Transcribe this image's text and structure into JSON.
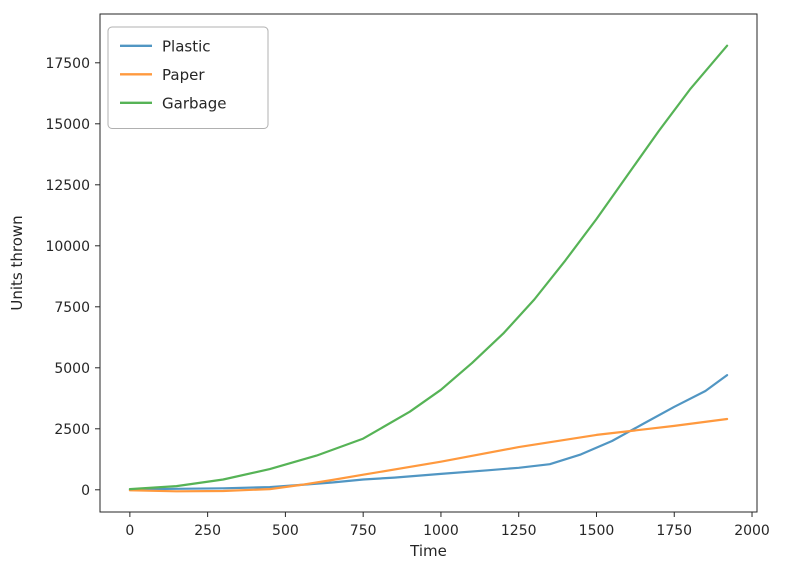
{
  "chart_data": {
    "type": "line",
    "title": "",
    "xlabel": "Time",
    "ylabel": "Units thrown",
    "xlim": [
      -96,
      2016
    ],
    "ylim": [
      -910,
      19500
    ],
    "x_ticks": [
      0,
      250,
      500,
      750,
      1000,
      1250,
      1500,
      1750,
      2000
    ],
    "y_ticks": [
      0,
      2500,
      5000,
      7500,
      10000,
      12500,
      15000,
      17500
    ],
    "grid": false,
    "legend_position": "upper left",
    "axis_color": "#262626",
    "legend_border_color": "#b0b0b0",
    "series": [
      {
        "name": "Plastic",
        "color": "#5196c3",
        "x": [
          0,
          150,
          300,
          450,
          550,
          650,
          750,
          850,
          1000,
          1150,
          1250,
          1350,
          1450,
          1550,
          1650,
          1750,
          1850,
          1920
        ],
        "y": [
          20,
          40,
          60,
          110,
          200,
          300,
          420,
          500,
          650,
          800,
          900,
          1050,
          1450,
          2000,
          2700,
          3400,
          4050,
          4700
        ]
      },
      {
        "name": "Paper",
        "color": "#ff993e",
        "x": [
          0,
          150,
          300,
          450,
          550,
          650,
          750,
          1000,
          1250,
          1500,
          1750,
          1920
        ],
        "y": [
          -20,
          -60,
          -50,
          30,
          200,
          400,
          620,
          1150,
          1750,
          2250,
          2620,
          2900
        ]
      },
      {
        "name": "Garbage",
        "color": "#56b356",
        "x": [
          0,
          150,
          300,
          450,
          600,
          750,
          900,
          1000,
          1100,
          1200,
          1300,
          1400,
          1500,
          1600,
          1700,
          1800,
          1920
        ],
        "y": [
          30,
          150,
          420,
          850,
          1400,
          2100,
          3200,
          4100,
          5200,
          6400,
          7800,
          9400,
          11100,
          12900,
          14700,
          16400,
          18200
        ]
      }
    ]
  }
}
